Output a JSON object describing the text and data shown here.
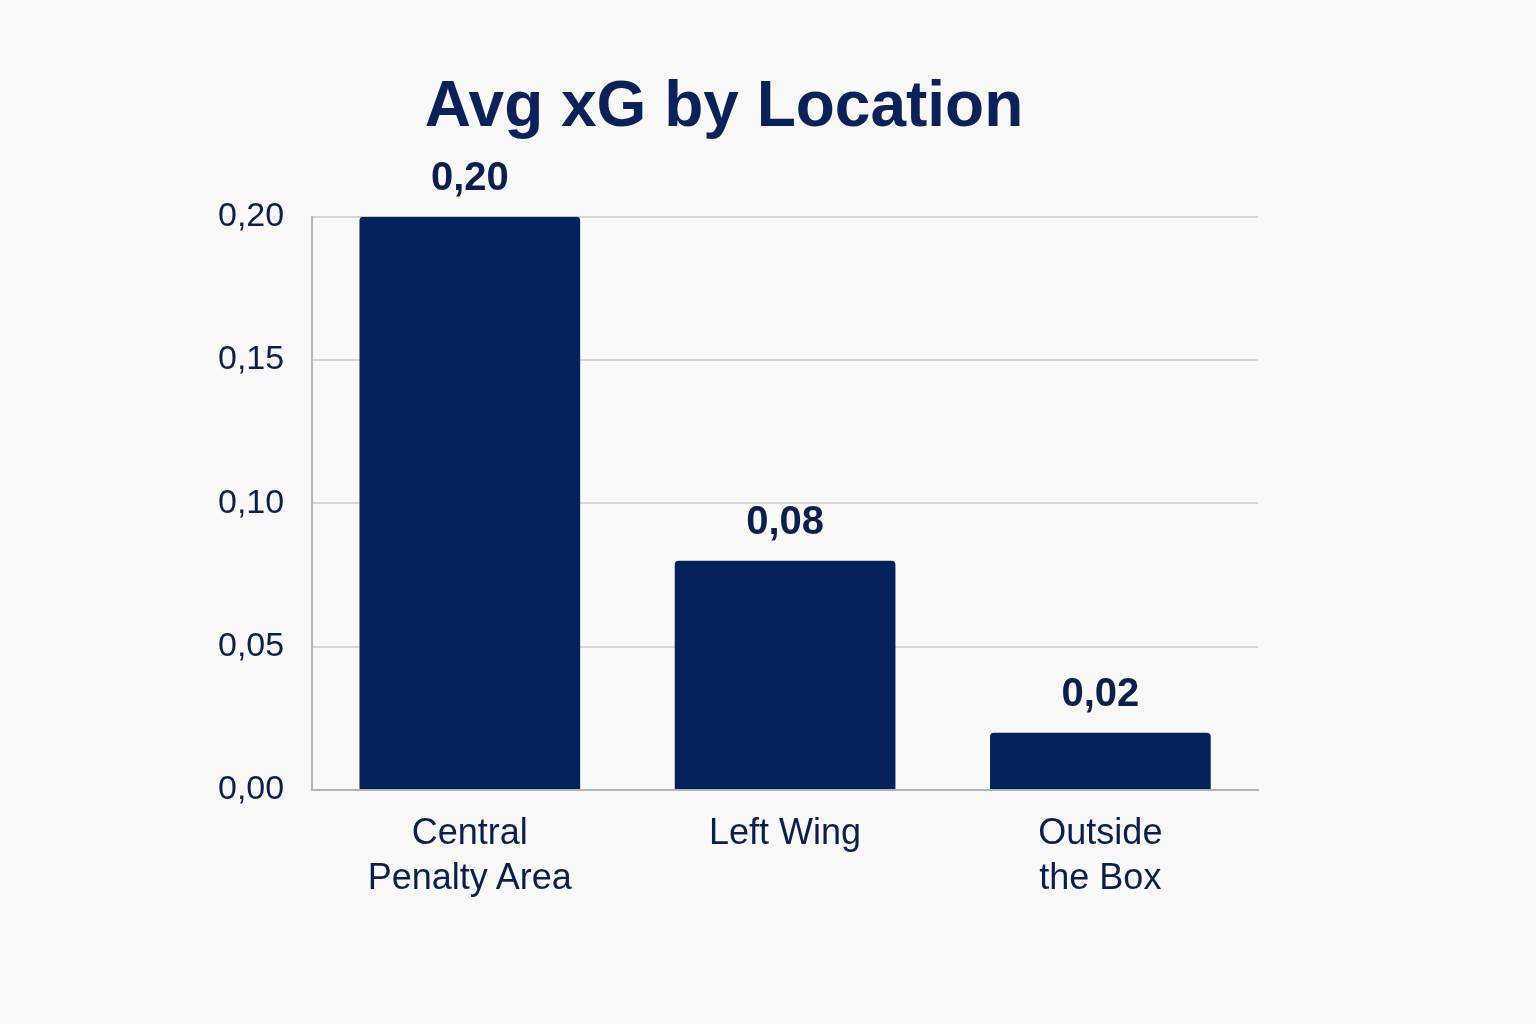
{
  "chart_data": {
    "type": "bar",
    "title": "Avg xG by Location",
    "categories": [
      "Central Penalty Area",
      "Left Wing",
      "Outside the Box"
    ],
    "values": [
      0.2,
      0.08,
      0.02
    ],
    "color": "#06225a",
    "value_labels": [
      "0,20",
      "0,08",
      "0,02"
    ],
    "ylim": [
      0,
      0.2
    ],
    "yticks": [
      {
        "value": 0,
        "label": "0,00"
      },
      {
        "value": 0.05,
        "label": "0,05"
      },
      {
        "value": 0.1,
        "label": "0,10"
      },
      {
        "value": 0.15,
        "label": "0,15"
      },
      {
        "value": 0.2,
        "label": "0,20"
      }
    ],
    "grid": "y",
    "legend": false
  }
}
